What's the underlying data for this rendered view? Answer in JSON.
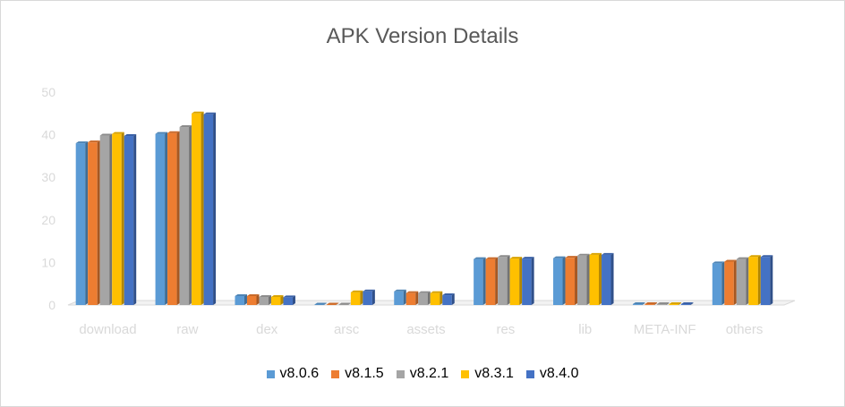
{
  "chart_data": {
    "type": "bar",
    "title": "APK Version Details",
    "xlabel": "",
    "ylabel": "",
    "ylim": [
      0,
      50
    ],
    "yticks": [
      "0",
      "10",
      "20",
      "30",
      "40",
      "50"
    ],
    "grid": false,
    "legend_position": "bottom",
    "categories": [
      "download",
      "raw",
      "dex",
      "arsc",
      "assets",
      "res",
      "lib",
      "META-INF",
      "others"
    ],
    "series": [
      {
        "name": "v8.0.6",
        "color": "#5b9bd5",
        "values": [
          38.0,
          40.2,
          2.1,
          0.1,
          3.2,
          10.8,
          11.0,
          0.2,
          9.8
        ]
      },
      {
        "name": "v8.1.5",
        "color": "#ed7d31",
        "values": [
          38.2,
          40.4,
          2.1,
          0.1,
          2.8,
          10.8,
          11.1,
          0.2,
          10.2
        ]
      },
      {
        "name": "v8.2.1",
        "color": "#a5a5a5",
        "values": [
          39.8,
          41.8,
          1.9,
          0.1,
          2.8,
          11.3,
          11.6,
          0.2,
          10.8
        ]
      },
      {
        "name": "v8.3.1",
        "color": "#ffc000",
        "values": [
          40.2,
          45.0,
          1.9,
          3.0,
          2.8,
          10.9,
          11.8,
          0.2,
          11.3
        ]
      },
      {
        "name": "v8.4.0",
        "color": "#4472c4",
        "values": [
          39.7,
          44.8,
          1.8,
          3.2,
          2.3,
          10.9,
          11.8,
          0.2,
          11.3
        ]
      }
    ]
  }
}
